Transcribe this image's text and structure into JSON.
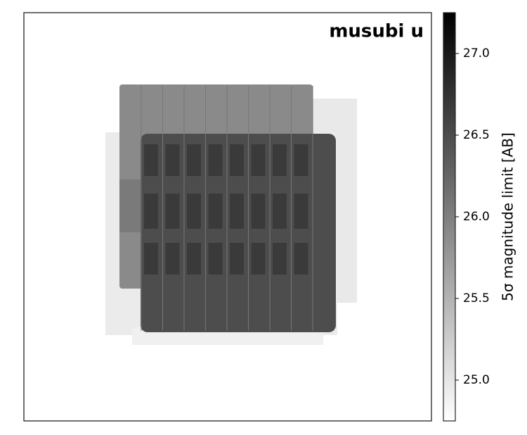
{
  "chart_data": {
    "type": "image",
    "title": "musubi u",
    "title_color": "#ee82ee",
    "colorbar_label": "5σ magnitude limit [AB]",
    "colormap": "gray_r",
    "clim": [
      24.75,
      27.25
    ],
    "cticks": [
      {
        "value": 25,
        "label": "25.0"
      },
      {
        "value": 25.5,
        "label": "25.5"
      },
      {
        "value": 26,
        "label": "26.0"
      },
      {
        "value": 26.5,
        "label": "26.5"
      },
      {
        "value": 27,
        "label": "27.0"
      }
    ]
  }
}
